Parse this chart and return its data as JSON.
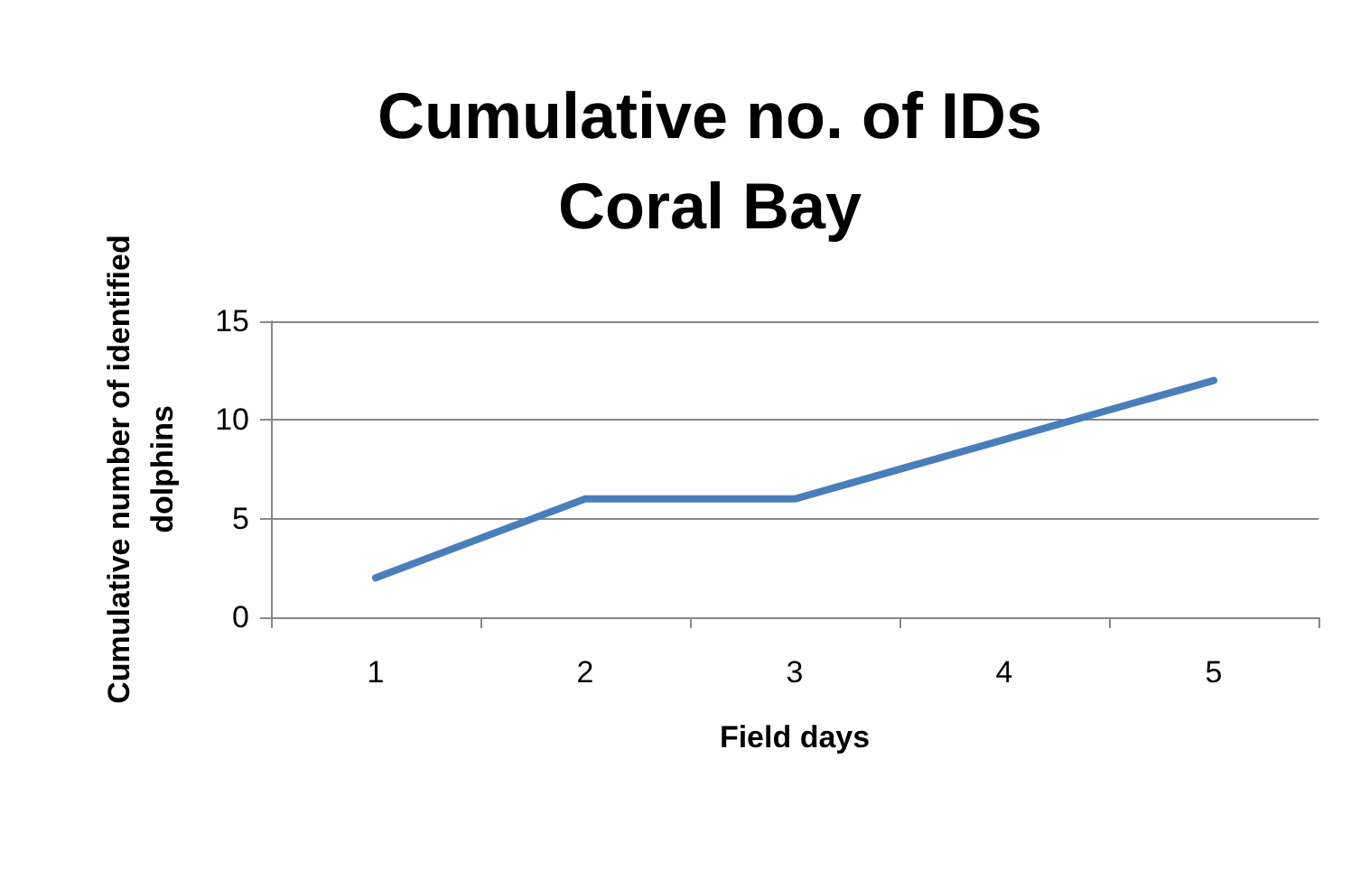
{
  "chart_data": {
    "type": "line",
    "title": "Cumulative no. of IDs\nCoral Bay",
    "xlabel": "Field days",
    "ylabel": "Cumulative number of identified\ndolphins",
    "categories": [
      "1",
      "2",
      "3",
      "4",
      "5"
    ],
    "series": [
      {
        "color": "#4a7ebb",
        "values": [
          2,
          6,
          6,
          9,
          12
        ]
      }
    ],
    "ylim": [
      0,
      15
    ],
    "yticks": [
      0,
      5,
      10,
      15
    ],
    "grid": "y",
    "marker": "none",
    "line_style": "solid"
  }
}
